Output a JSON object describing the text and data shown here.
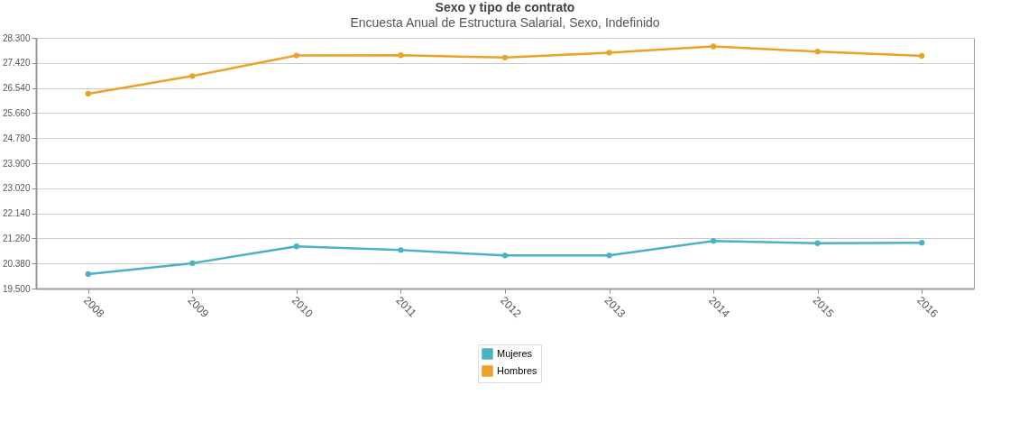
{
  "chart_data": {
    "type": "line",
    "title": "Sexo y tipo de contrato",
    "subtitle": "Encuesta Anual de Estructura Salarial, Sexo, Indefinido",
    "categories": [
      "2008",
      "2009",
      "2010",
      "2011",
      "2012",
      "2013",
      "2014",
      "2015",
      "2016"
    ],
    "series": [
      {
        "name": "Mujeres",
        "color": "#4bb2c5",
        "values": [
          20010,
          20390,
          20980,
          20850,
          20660,
          20660,
          21170,
          21090,
          21110
        ]
      },
      {
        "name": "Hombres",
        "color": "#eaa228",
        "values": [
          26340,
          26960,
          27680,
          27690,
          27610,
          27780,
          28000,
          27820,
          27670
        ]
      }
    ],
    "ylim": [
      19500,
      28300
    ],
    "yticks": [
      {
        "value": 19500,
        "label": "19.500"
      },
      {
        "value": 20380,
        "label": "20.380"
      },
      {
        "value": 21260,
        "label": "21.260"
      },
      {
        "value": 22140,
        "label": "22.140"
      },
      {
        "value": 23020,
        "label": "23.020"
      },
      {
        "value": 23900,
        "label": "23.900"
      },
      {
        "value": 24780,
        "label": "24.780"
      },
      {
        "value": 25660,
        "label": "25.660"
      },
      {
        "value": 26540,
        "label": "26.540"
      },
      {
        "value": 27420,
        "label": "27.420"
      },
      {
        "value": 28300,
        "label": "28.300"
      }
    ],
    "grid": "y",
    "legend": "bottom",
    "marker": "circle",
    "line_style": "solid"
  }
}
